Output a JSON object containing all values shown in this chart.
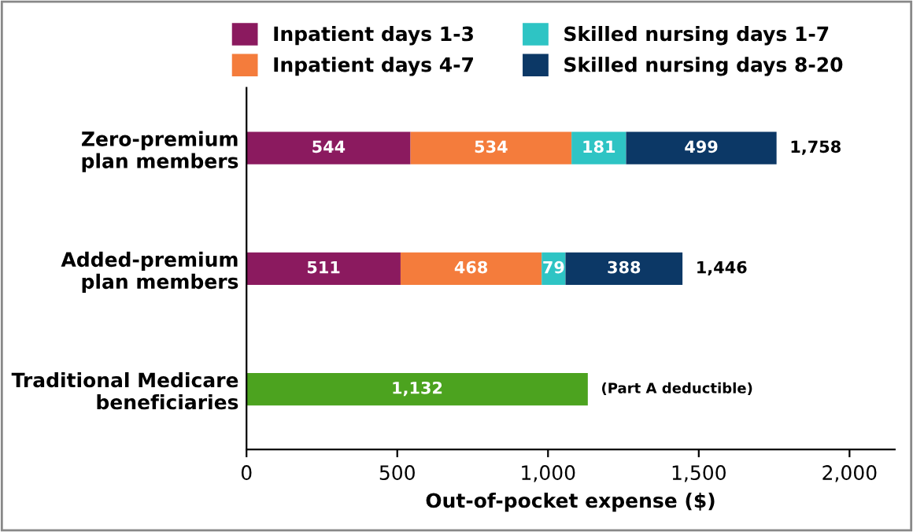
{
  "chart_data": {
    "type": "bar",
    "orientation": "horizontal",
    "stacked": true,
    "categories": [
      "Zero-premium\nplan members",
      "Added-premium\nplan members",
      "Traditional Medicare\nbeneficiaries"
    ],
    "series": [
      {
        "name": "Inpatient days 1-3",
        "color": "#8b1a5f",
        "values": [
          544,
          511,
          null
        ],
        "value_labels": [
          "544",
          "511",
          null
        ]
      },
      {
        "name": "Inpatient days 4-7",
        "color": "#f47c3c",
        "values": [
          534,
          468,
          null
        ],
        "value_labels": [
          "534",
          "468",
          null
        ]
      },
      {
        "name": "Skilled nursing days 1-7",
        "color": "#2ec4c4",
        "values": [
          181,
          79,
          null
        ],
        "value_labels": [
          "181",
          "79",
          null
        ]
      },
      {
        "name": "Skilled nursing days 8-20",
        "color": "#0c3866",
        "values": [
          499,
          388,
          null
        ],
        "value_labels": [
          "499",
          "388",
          null
        ]
      },
      {
        "color": "#4ca31f",
        "values": [
          null,
          null,
          1132
        ],
        "value_labels": [
          null,
          null,
          "1,132"
        ]
      }
    ],
    "totals": [
      "1,758",
      "1,446",
      null
    ],
    "annotations": [
      {
        "text": "(Part A deductible)",
        "x": 1132,
        "y": "Traditional Medicare\nbeneficiaries"
      }
    ],
    "xlabel": "Out-of-pocket expense ($)",
    "xlim": [
      0,
      2150
    ],
    "xticks": [
      0,
      500,
      {
        "value": 1000,
        "label": "1,000"
      },
      {
        "value": 1500,
        "label": "1,500"
      },
      {
        "value": 2000,
        "label": "2,000"
      }
    ],
    "grid": false,
    "legend": "top"
  }
}
